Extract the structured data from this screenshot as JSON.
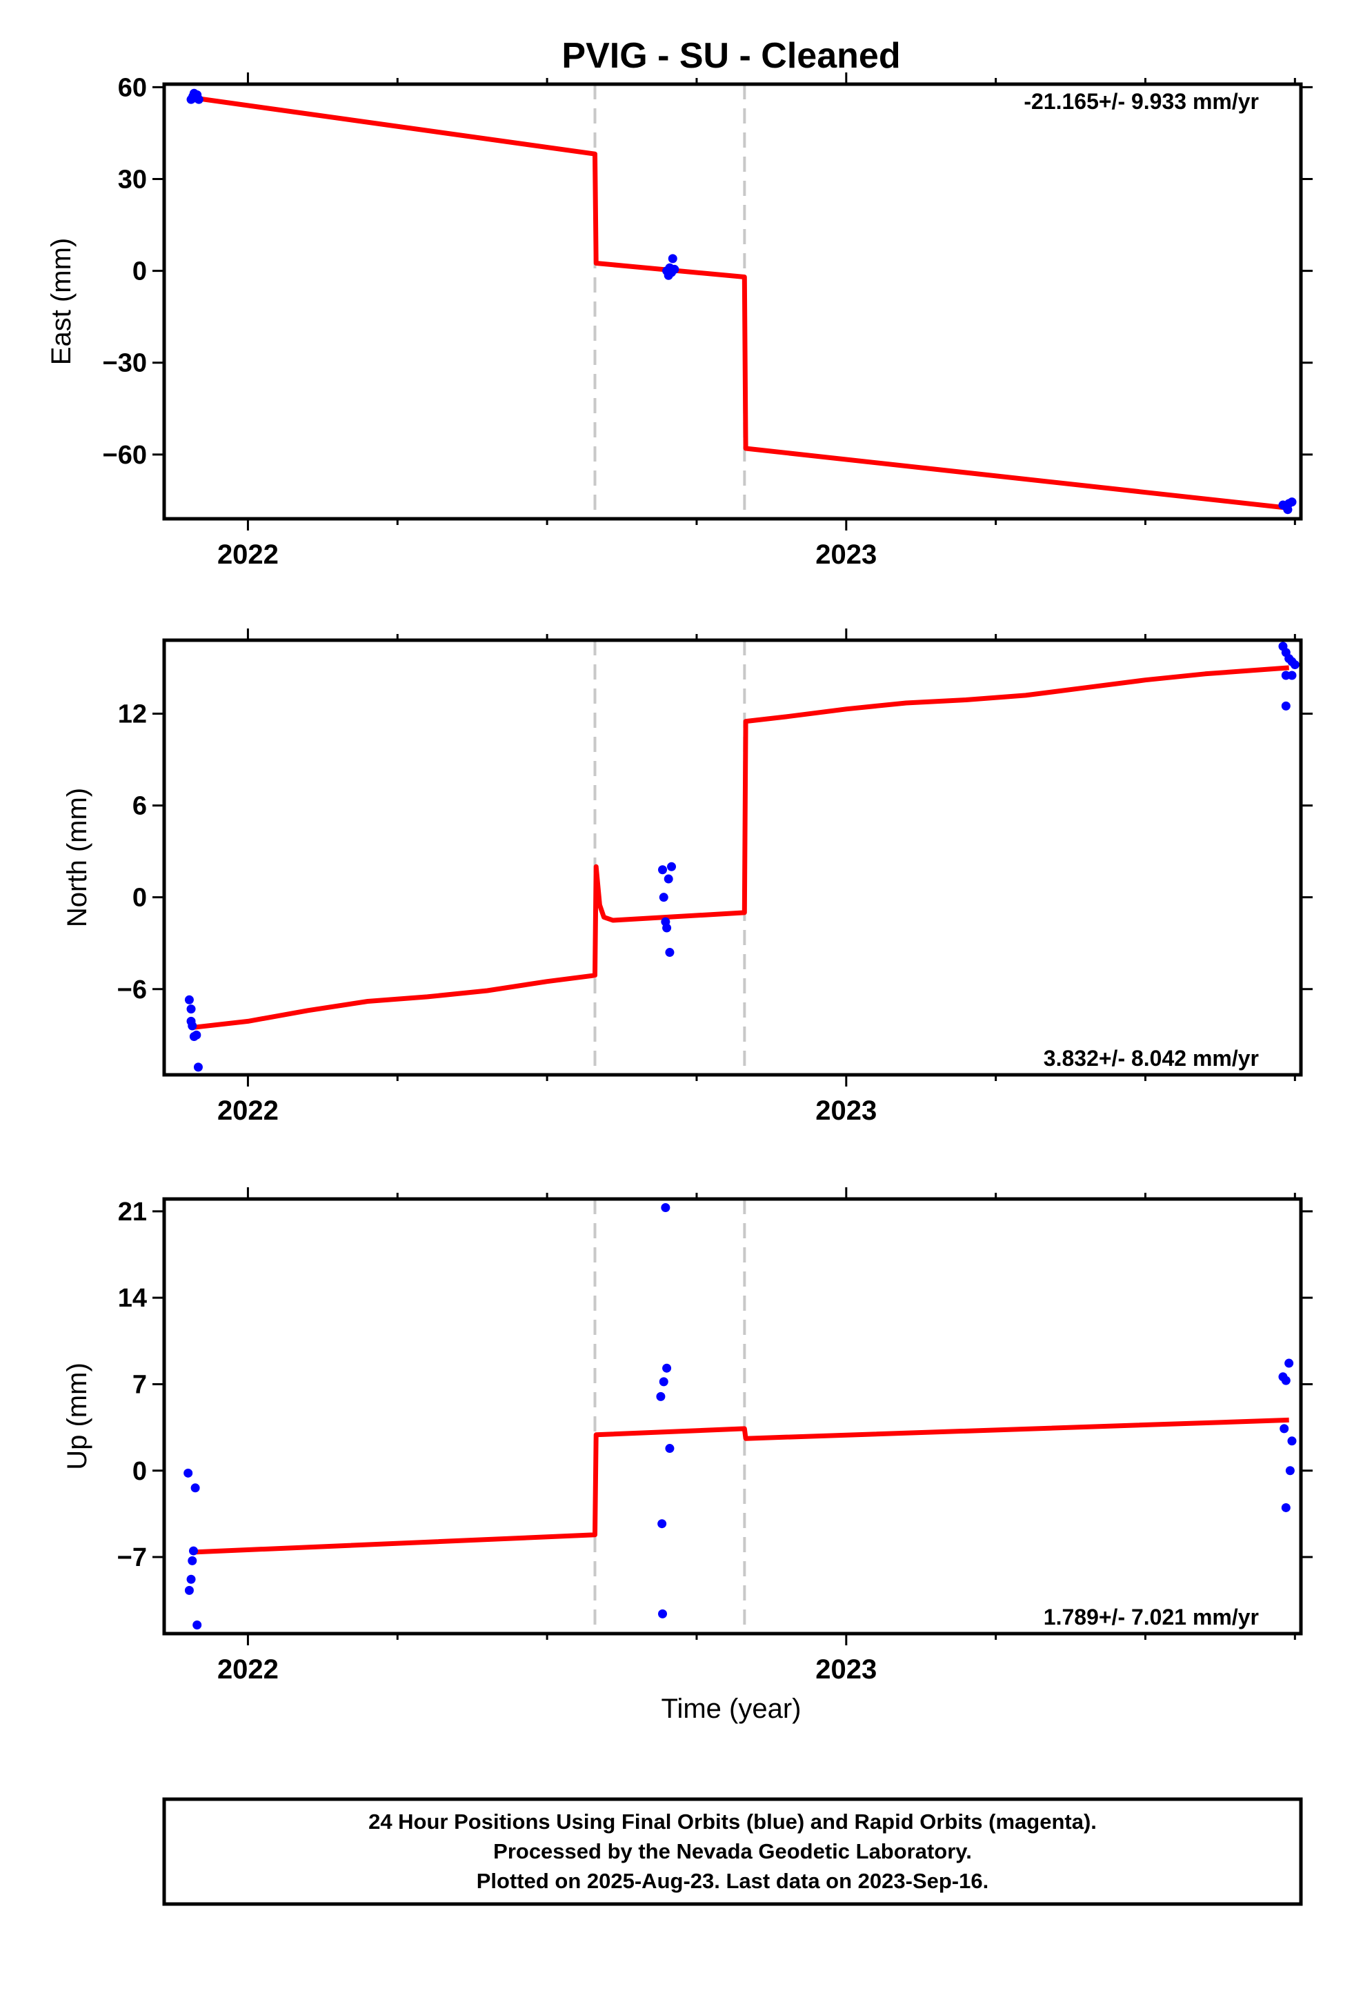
{
  "title": "PVIG  - SU - Cleaned",
  "colors": {
    "fit": "#ff0000",
    "final_points": "#0000ff",
    "breaks": "#c8c8c8",
    "frame": "#000000"
  },
  "xlabel": "Time (year)",
  "footer": {
    "line1": "24 Hour Positions Using Final Orbits (blue) and Rapid Orbits (magenta).",
    "line2": "Processed by the Nevada Geodetic Laboratory.",
    "line3": "Plotted on 2025-Aug-23. Last data on 2023-Sep-16."
  },
  "chart_data": [
    {
      "type": "scatter",
      "ylabel": "East (mm)",
      "rate_text": "-21.165+/- 9.933 mm/yr",
      "xlim": [
        2021.86,
        2023.76
      ],
      "ylim": [
        -81,
        61
      ],
      "x_ticks": [
        2022,
        2023
      ],
      "y_ticks": [
        60,
        30,
        0,
        -30,
        -60
      ],
      "breaks": [
        2022.58,
        2022.83
      ],
      "points": [
        [
          2021.905,
          56
        ],
        [
          2021.908,
          57
        ],
        [
          2021.91,
          58
        ],
        [
          2021.912,
          56.5
        ],
        [
          2021.915,
          57.5
        ],
        [
          2021.918,
          56
        ],
        [
          2022.7,
          0
        ],
        [
          2022.703,
          -1.5
        ],
        [
          2022.705,
          1
        ],
        [
          2022.708,
          -0.5
        ],
        [
          2022.71,
          4
        ],
        [
          2022.713,
          0.5
        ],
        [
          2023.73,
          -76.5
        ],
        [
          2023.735,
          -77
        ],
        [
          2023.738,
          -78
        ],
        [
          2023.74,
          -76
        ],
        [
          2023.745,
          -75.5
        ]
      ],
      "fit": [
        [
          2021.91,
          56.5
        ],
        [
          2022.58,
          38.2
        ],
        [
          2022.582,
          2.5
        ],
        [
          2022.83,
          -2
        ],
        [
          2022.832,
          -58
        ],
        [
          2023.74,
          -77.5
        ]
      ]
    },
    {
      "type": "scatter",
      "ylabel": "North (mm)",
      "rate_text": "3.832+/- 8.042 mm/yr",
      "xlim": [
        2021.86,
        2023.76
      ],
      "ylim": [
        -11.6,
        16.8
      ],
      "x_ticks": [
        2022,
        2023
      ],
      "y_ticks": [
        12,
        6,
        0,
        -6
      ],
      "breaks": [
        2022.58,
        2022.83
      ],
      "points": [
        [
          2021.902,
          -6.7
        ],
        [
          2021.905,
          -7.3
        ],
        [
          2021.905,
          -8.1
        ],
        [
          2021.907,
          -8.4
        ],
        [
          2021.91,
          -9.1
        ],
        [
          2021.914,
          -9
        ],
        [
          2021.917,
          -11.1
        ],
        [
          2022.693,
          1.8
        ],
        [
          2022.695,
          0
        ],
        [
          2022.698,
          -1.6
        ],
        [
          2022.7,
          -2
        ],
        [
          2022.703,
          1.2
        ],
        [
          2022.705,
          -3.6
        ],
        [
          2022.708,
          2
        ],
        [
          2023.73,
          16.4
        ],
        [
          2023.735,
          16
        ],
        [
          2023.74,
          15.6
        ],
        [
          2023.745,
          15.4
        ],
        [
          2023.735,
          14.5
        ],
        [
          2023.745,
          14.5
        ],
        [
          2023.75,
          15.2
        ],
        [
          2023.735,
          12.5
        ]
      ],
      "fit": [
        [
          2021.91,
          -8.5
        ],
        [
          2022.0,
          -8.1
        ],
        [
          2022.1,
          -7.4
        ],
        [
          2022.2,
          -6.8
        ],
        [
          2022.3,
          -6.5
        ],
        [
          2022.4,
          -6.1
        ],
        [
          2022.5,
          -5.5
        ],
        [
          2022.58,
          -5.1
        ],
        [
          2022.582,
          2
        ],
        [
          2022.588,
          -0.5
        ],
        [
          2022.595,
          -1.3
        ],
        [
          2022.61,
          -1.5
        ],
        [
          2022.83,
          -1
        ],
        [
          2022.832,
          11.5
        ],
        [
          2022.9,
          11.8
        ],
        [
          2023.0,
          12.3
        ],
        [
          2023.1,
          12.7
        ],
        [
          2023.2,
          12.9
        ],
        [
          2023.3,
          13.2
        ],
        [
          2023.4,
          13.7
        ],
        [
          2023.5,
          14.2
        ],
        [
          2023.6,
          14.6
        ],
        [
          2023.74,
          15
        ]
      ]
    },
    {
      "type": "scatter",
      "ylabel": "Up (mm)",
      "rate_text": "1.789+/- 7.021 mm/yr",
      "xlim": [
        2021.86,
        2023.76
      ],
      "ylim": [
        -13.2,
        22
      ],
      "x_ticks": [
        2022,
        2023
      ],
      "y_ticks": [
        21,
        14,
        7,
        0,
        -7
      ],
      "breaks": [
        2022.58,
        2022.83
      ],
      "points": [
        [
          2021.9,
          -0.2
        ],
        [
          2021.902,
          -9.7
        ],
        [
          2021.905,
          -8.8
        ],
        [
          2021.907,
          -7.3
        ],
        [
          2021.909,
          -6.5
        ],
        [
          2021.912,
          -1.4
        ],
        [
          2021.915,
          -12.5
        ],
        [
          2022.69,
          6
        ],
        [
          2022.692,
          -4.3
        ],
        [
          2022.695,
          7.2
        ],
        [
          2022.693,
          -11.6
        ],
        [
          2022.698,
          21.3
        ],
        [
          2022.7,
          8.3
        ],
        [
          2022.705,
          1.8
        ],
        [
          2023.73,
          7.6
        ],
        [
          2023.735,
          7.3
        ],
        [
          2023.732,
          3.4
        ],
        [
          2023.735,
          -3
        ],
        [
          2023.74,
          8.7
        ],
        [
          2023.742,
          0
        ],
        [
          2023.745,
          2.4
        ]
      ],
      "fit": [
        [
          2021.91,
          -6.6
        ],
        [
          2022.58,
          -5.2
        ],
        [
          2022.582,
          2.9
        ],
        [
          2022.83,
          3.4
        ],
        [
          2022.832,
          2.6
        ],
        [
          2023.74,
          4.1
        ]
      ]
    }
  ]
}
